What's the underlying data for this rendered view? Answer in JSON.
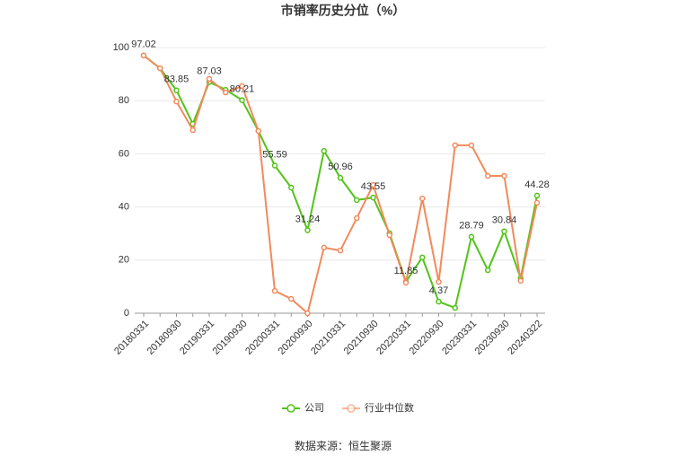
{
  "chart_data": {
    "type": "line",
    "title": "市销率历史分位（%）",
    "categories": [
      "20180331",
      null,
      "20180930",
      null,
      "20190331",
      null,
      "20190930",
      null,
      "20200331",
      null,
      "20200930",
      null,
      "20210331",
      null,
      "20210930",
      null,
      "20220331",
      null,
      "20220930",
      null,
      "20230331",
      null,
      "20230930",
      null,
      "20240322"
    ],
    "series": [
      {
        "name": "公司",
        "color": "#52c41a",
        "values": [
          97.02,
          92.2,
          83.85,
          71.3,
          87.03,
          84.1,
          80.21,
          68.6,
          55.59,
          47.3,
          31.24,
          61.1,
          50.96,
          42.6,
          43.55,
          30.1,
          11.85,
          21.0,
          4.37,
          2.0,
          28.79,
          16.2,
          30.84,
          13.2,
          44.28
        ]
      },
      {
        "name": "行业中位数",
        "color": "#f28a5c",
        "values": [
          97.0,
          92.2,
          79.7,
          68.9,
          88.2,
          83.1,
          85.5,
          68.6,
          8.4,
          5.4,
          0,
          24.7,
          23.6,
          35.8,
          48.3,
          29.4,
          11.5,
          43.2,
          11.8,
          63.2,
          63.2,
          51.7,
          51.7,
          12.2,
          41.6
        ]
      }
    ],
    "ylim": [
      0,
      100
    ],
    "yticks": [
      0,
      20,
      40,
      60,
      80,
      100
    ],
    "grid": true,
    "legend": "bottom",
    "source": "数据来源：恒生聚源"
  }
}
